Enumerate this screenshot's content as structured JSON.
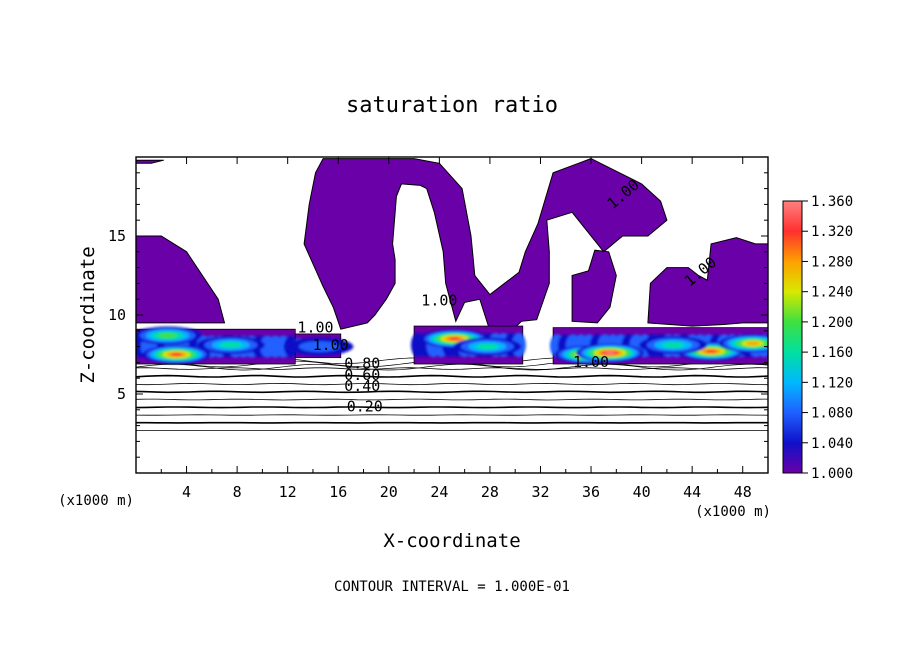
{
  "chart_data": {
    "type": "heatmap",
    "title": "saturation ratio",
    "xlabel": "X-coordinate",
    "ylabel": "Z-coordinate",
    "x_unit_label": "(x1000 m)",
    "y_unit_label": "(x1000 m)",
    "xlim": [
      0,
      50
    ],
    "ylim": [
      0,
      20
    ],
    "x_ticks": [
      4,
      8,
      12,
      16,
      20,
      24,
      28,
      32,
      36,
      40,
      44,
      48
    ],
    "x_tick_labels": [
      "4",
      "8",
      "12",
      "16",
      "20",
      "24",
      "28",
      "32",
      "36",
      "40",
      "44",
      "48"
    ],
    "y_ticks": [
      5,
      10,
      15
    ],
    "y_tick_labels": [
      "5",
      "10",
      "15"
    ],
    "footer": "CONTOUR INTERVAL = 1.000E-01",
    "colorbar": {
      "min": 1.0,
      "max": 1.36,
      "tick_values": [
        1.0,
        1.04,
        1.08,
        1.12,
        1.16,
        1.2,
        1.24,
        1.28,
        1.32,
        1.36
      ],
      "tick_labels": [
        "1.000",
        "1.040",
        "1.080",
        "1.120",
        "1.160",
        "1.200",
        "1.240",
        "1.280",
        "1.320",
        "1.360"
      ],
      "colors": [
        "#6a00a8",
        "#1010c8",
        "#2060ff",
        "#00b8ff",
        "#00e0a0",
        "#40e040",
        "#d8e800",
        "#ffa000",
        "#ff3030",
        "#ff8080"
      ]
    },
    "contour_levels": [
      0.1,
      0.2,
      0.3,
      0.4,
      0.5,
      0.6,
      0.7,
      0.8,
      0.9
    ],
    "contour_labels": [
      {
        "text": "0.20",
        "x": 18.1,
        "z": 3.9
      },
      {
        "text": "0.40",
        "x": 17.9,
        "z": 5.2
      },
      {
        "text": "0.60",
        "x": 17.9,
        "z": 5.9
      },
      {
        "text": "0.80",
        "x": 17.9,
        "z": 6.6
      },
      {
        "text": "1.00",
        "x": 14.2,
        "z": 8.9
      },
      {
        "text": "1.00",
        "x": 15.4,
        "z": 7.8
      },
      {
        "text": "1.00",
        "x": 36.0,
        "z": 6.7
      },
      {
        "text": "1.00",
        "x": 38.8,
        "z": 17.4
      },
      {
        "text": "1.00",
        "x": 44.9,
        "z": 12.5
      },
      {
        "text": "1.00",
        "x": 24.0,
        "z": 10.6
      }
    ],
    "supersaturated_cloud_regions": [
      {
        "name": "upper-left",
        "points": [
          [
            0,
            15
          ],
          [
            2,
            15
          ],
          [
            4,
            14
          ],
          [
            6.5,
            11
          ],
          [
            7,
            9.5
          ],
          [
            0,
            9.5
          ]
        ]
      },
      {
        "name": "top-left-sliver",
        "points": [
          [
            0,
            19.8
          ],
          [
            2.2,
            19.8
          ],
          [
            1.2,
            19.6
          ],
          [
            0,
            19.6
          ]
        ]
      },
      {
        "name": "central-plume",
        "points": [
          [
            14.8,
            19.9
          ],
          [
            22,
            19.9
          ],
          [
            24,
            19.6
          ],
          [
            25.8,
            18
          ],
          [
            26.5,
            15
          ],
          [
            26.8,
            12.5
          ],
          [
            28,
            11.3
          ],
          [
            30.3,
            12.7
          ],
          [
            30.8,
            14
          ],
          [
            31.8,
            15.8
          ],
          [
            33,
            19
          ],
          [
            35,
            19.6
          ],
          [
            36,
            19.9
          ],
          [
            37.5,
            19.3
          ],
          [
            40,
            18.3
          ],
          [
            41.5,
            17.2
          ],
          [
            42,
            16
          ],
          [
            40.5,
            15
          ],
          [
            38.5,
            15
          ],
          [
            37,
            14
          ],
          [
            35.5,
            15.5
          ],
          [
            34.5,
            16.5
          ],
          [
            32.5,
            16
          ],
          [
            32.7,
            14
          ],
          [
            32.7,
            12
          ],
          [
            31.7,
            9.7
          ],
          [
            30.5,
            9.6
          ],
          [
            28.8,
            8.3
          ],
          [
            28,
            9
          ],
          [
            27.2,
            11
          ],
          [
            26,
            10.8
          ],
          [
            25.3,
            9.6
          ],
          [
            24.5,
            12
          ],
          [
            24.3,
            14
          ],
          [
            23.6,
            16.5
          ],
          [
            23,
            18
          ],
          [
            22.5,
            18.2
          ],
          [
            21,
            18.3
          ],
          [
            20.6,
            17.5
          ],
          [
            20.3,
            14.5
          ],
          [
            20.5,
            13.5
          ],
          [
            20.5,
            12
          ],
          [
            19.8,
            11
          ],
          [
            18.9,
            10
          ],
          [
            18.3,
            9.5
          ],
          [
            16.2,
            9.1
          ],
          [
            15.6,
            10.5
          ],
          [
            14.8,
            11.8
          ],
          [
            13.3,
            14.5
          ],
          [
            13.7,
            17
          ],
          [
            14.2,
            19
          ]
        ]
      },
      {
        "name": "right-pocket",
        "points": [
          [
            34.5,
            12.5
          ],
          [
            34.5,
            9.6
          ],
          [
            36.5,
            9.5
          ],
          [
            37.5,
            10.5
          ],
          [
            38,
            12.5
          ],
          [
            37.4,
            14
          ],
          [
            36.3,
            14.1
          ],
          [
            35.8,
            12.8
          ]
        ]
      },
      {
        "name": "right-lobe",
        "points": [
          [
            40.5,
            9.5
          ],
          [
            40.7,
            12
          ],
          [
            42,
            13
          ],
          [
            43.7,
            13
          ],
          [
            44.5,
            12.5
          ],
          [
            45.2,
            12.2
          ],
          [
            45.5,
            14.5
          ],
          [
            47.5,
            14.9
          ],
          [
            49,
            14.5
          ],
          [
            50,
            14.5
          ],
          [
            50,
            9.5
          ],
          [
            48,
            9.5
          ],
          [
            46.5,
            9.4
          ],
          [
            44,
            9.3
          ]
        ]
      }
    ],
    "saturation_band_segments": [
      {
        "x": [
          0,
          12.6
        ],
        "z": [
          6.9,
          9.1
        ],
        "peaks": [
          [
            3.2,
            7.5,
            1.33
          ],
          [
            2.5,
            8.7,
            1.2
          ],
          [
            7.5,
            8.1,
            1.18
          ]
        ]
      },
      {
        "x": [
          12.6,
          16.2
        ],
        "z": [
          7.3,
          8.8
        ],
        "peaks": [
          [
            14.5,
            8.0,
            1.07
          ]
        ]
      },
      {
        "x": [
          22.0,
          30.6
        ],
        "z": [
          6.9,
          9.3
        ],
        "peaks": [
          [
            25.2,
            8.5,
            1.32
          ],
          [
            27.8,
            8.0,
            1.18
          ]
        ]
      },
      {
        "x": [
          33.0,
          50.0
        ],
        "z": [
          6.9,
          9.2
        ],
        "peaks": [
          [
            35.8,
            7.5,
            1.32
          ],
          [
            37.5,
            7.6,
            1.34
          ],
          [
            45.5,
            7.7,
            1.3
          ],
          [
            48.8,
            8.2,
            1.28
          ],
          [
            42.5,
            8.1,
            1.17
          ]
        ]
      }
    ]
  }
}
